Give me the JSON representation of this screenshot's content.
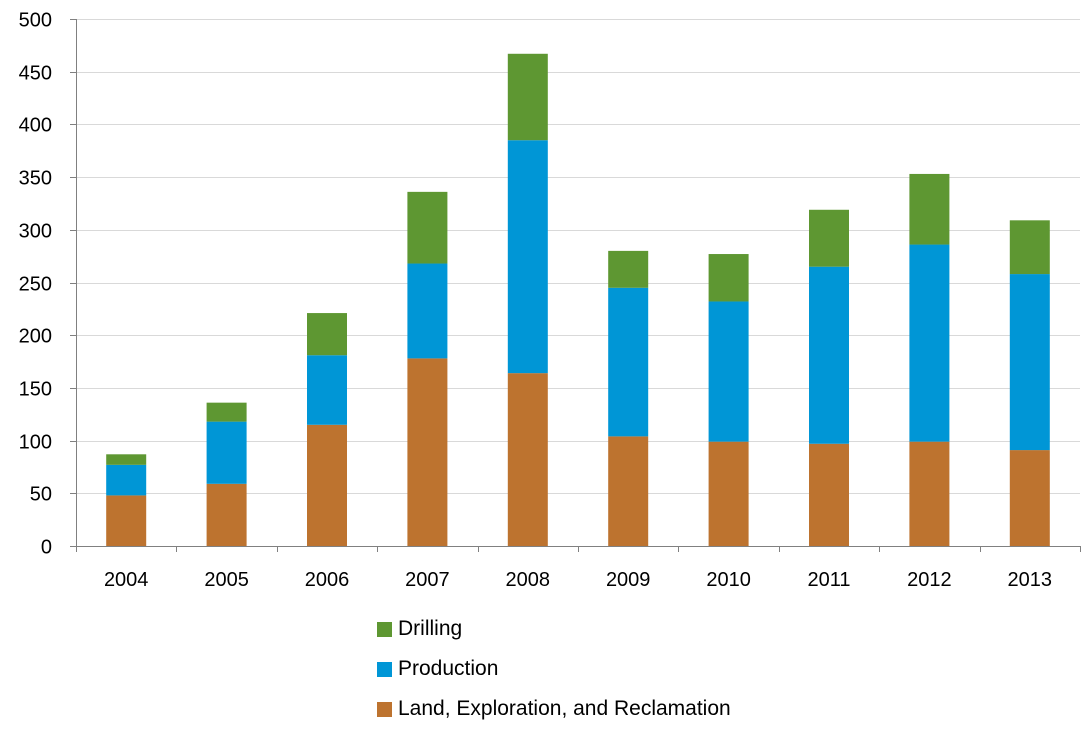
{
  "chart_data": {
    "type": "bar",
    "stacked": true,
    "categories": [
      "2004",
      "2005",
      "2006",
      "2007",
      "2008",
      "2009",
      "2010",
      "2011",
      "2012",
      "2013"
    ],
    "series": [
      {
        "name": "Land, Exploration, and Reclamation",
        "color": "#BD732F",
        "values": [
          48,
          59,
          115,
          178,
          164,
          104,
          99,
          97,
          99,
          91
        ]
      },
      {
        "name": "Production",
        "color": "#0096D6",
        "values": [
          29,
          59,
          66,
          90,
          221,
          141,
          133,
          168,
          187,
          167
        ]
      },
      {
        "name": "Drilling",
        "color": "#5E9732",
        "values": [
          10,
          18,
          40,
          68,
          82,
          35,
          45,
          54,
          67,
          51
        ]
      }
    ],
    "title": "",
    "xlabel": "",
    "ylabel": "",
    "ylim": [
      0,
      500
    ],
    "yticks": [
      "0",
      "50",
      "100",
      "150",
      "200",
      "250",
      "300",
      "350",
      "400",
      "450",
      "500"
    ],
    "grid": true,
    "legend_position": "bottom",
    "legend_order": [
      "Drilling",
      "Production",
      "Land, Exploration, and Reclamation"
    ]
  }
}
